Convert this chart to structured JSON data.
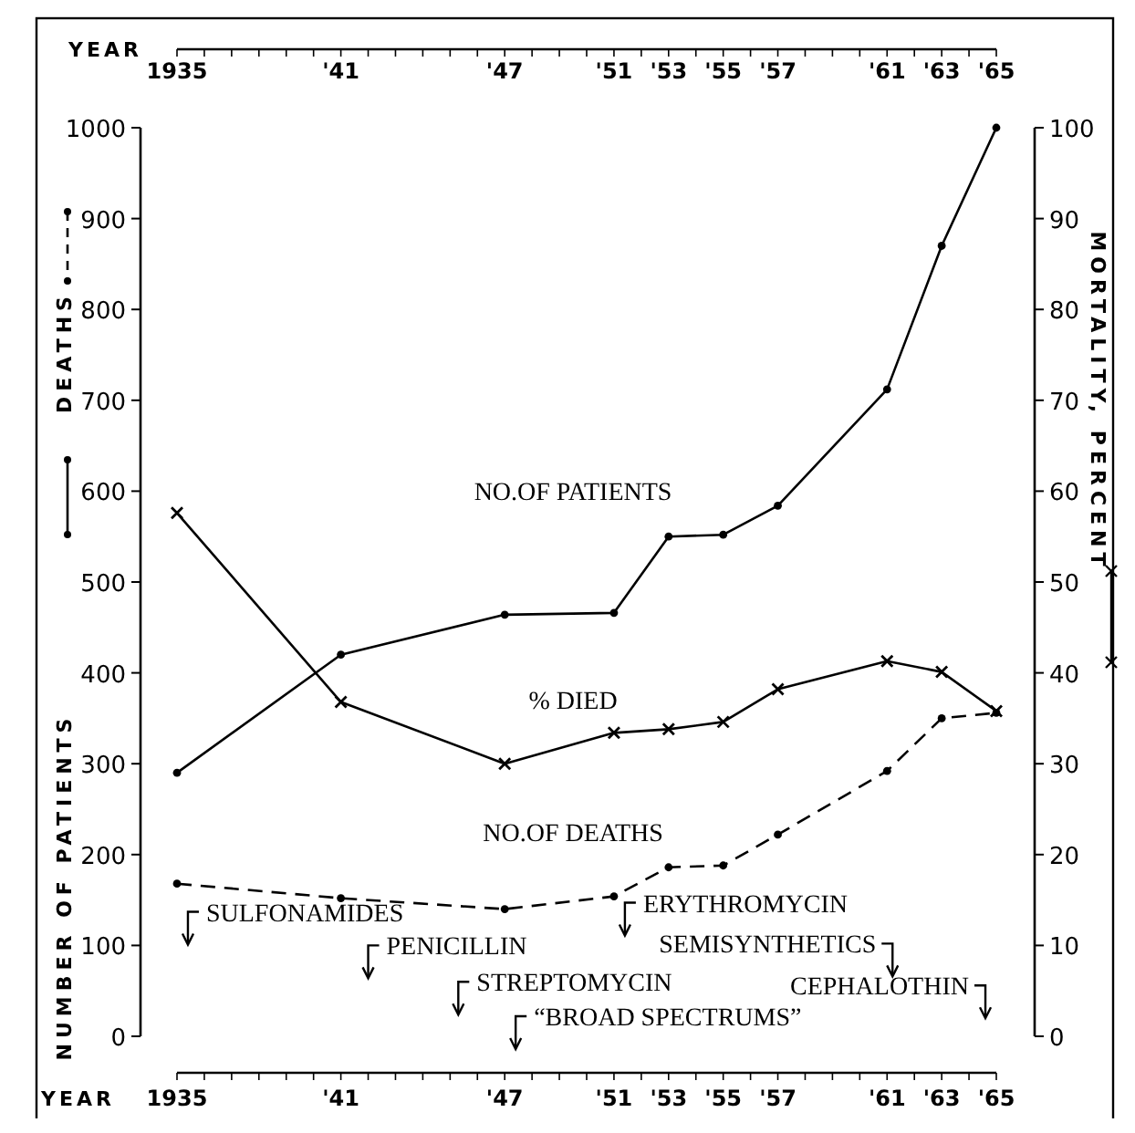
{
  "chart_data": {
    "type": "line",
    "xlabel": "YEAR",
    "x2label": "YEAR",
    "ylabel": "NUMBER OF PATIENTS",
    "y2label": "MORTALITY, PERCENT",
    "x": [
      1935,
      1941,
      1947,
      1951,
      1953,
      1955,
      1957,
      1961,
      1963,
      1965
    ],
    "xlim": [
      1935,
      1965
    ],
    "x2lim": [
      1935,
      1965
    ],
    "xticks": [
      {
        "value": 1935,
        "label": "1935"
      },
      {
        "value": 1941,
        "label": "'41"
      },
      {
        "value": 1947,
        "label": "'47"
      },
      {
        "value": 1951,
        "label": "'51"
      },
      {
        "value": 1953,
        "label": "'53"
      },
      {
        "value": 1955,
        "label": "'55"
      },
      {
        "value": 1957,
        "label": "'57"
      },
      {
        "value": 1961,
        "label": "'61"
      },
      {
        "value": 1963,
        "label": "'63"
      },
      {
        "value": 1965,
        "label": "'65"
      }
    ],
    "x2ticks": [
      {
        "value": 1935,
        "label": "1935"
      },
      {
        "value": 1941,
        "label": "'41"
      },
      {
        "value": 1947,
        "label": "'47"
      },
      {
        "value": 1951,
        "label": "'51"
      },
      {
        "value": 1953,
        "label": "'53"
      },
      {
        "value": 1955,
        "label": "'55"
      },
      {
        "value": 1957,
        "label": "'57"
      },
      {
        "value": 1961,
        "label": "'61"
      },
      {
        "value": 1963,
        "label": "'63"
      },
      {
        "value": 1965,
        "label": "'65"
      }
    ],
    "ylim": [
      0,
      1000
    ],
    "yticks": [
      0,
      100,
      200,
      300,
      400,
      500,
      600,
      700,
      800,
      900,
      1000
    ],
    "y2lim": [
      0,
      100
    ],
    "y2ticks": [
      0,
      10,
      20,
      30,
      40,
      50,
      60,
      70,
      80,
      90,
      100
    ],
    "grid": false,
    "series": [
      {
        "name": "NO.OF PATIENTS",
        "color": "#000000",
        "marker": "circle",
        "line_style": "solid",
        "values": [
          290,
          420,
          464,
          466,
          550,
          552,
          584,
          712,
          870,
          1000
        ]
      },
      {
        "name": "% DIED",
        "color": "#000000",
        "marker": "cross",
        "line_style": "solid",
        "axis": "y2",
        "values": [
          57.6,
          36.8,
          30.0,
          33.4,
          33.8,
          34.6,
          38.2,
          41.3,
          40.1,
          35.8
        ]
      },
      {
        "name": "NO.OF DEATHS",
        "color": "#000000",
        "marker": "circle",
        "line_style": "dashed",
        "values": [
          168,
          152,
          140,
          154,
          186,
          188,
          222,
          292,
          350,
          356
        ]
      }
    ],
    "annotations": [
      "DEATHS",
      "SULFONAMIDES",
      "PENICILLIN",
      "STREPTOMYCIN",
      "“BROAD SPECTRUMS”",
      "ERYTHROMYCIN",
      "SEMISYNTHETICS",
      "CEPHALOTHIN"
    ]
  }
}
